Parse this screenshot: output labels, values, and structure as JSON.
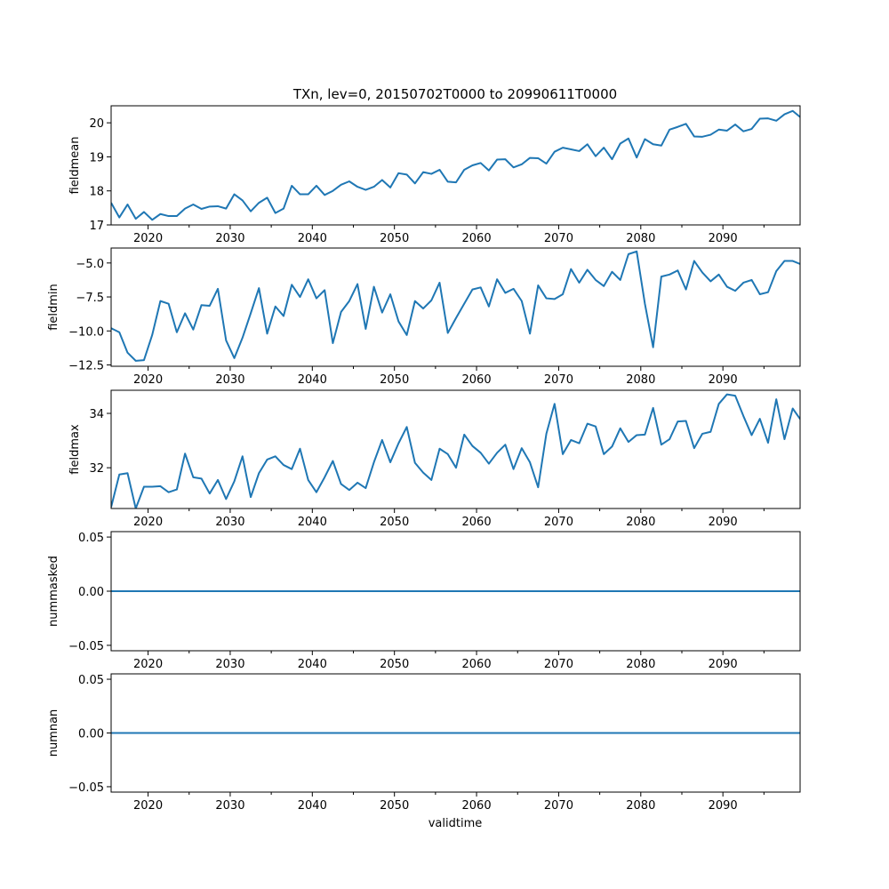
{
  "chart_data": {
    "type": "line",
    "title": "TXn, lev=0, 20150702T0000 to 20990611T0000",
    "xlabel": "validtime",
    "xlim": [
      2015.5,
      2099.4
    ],
    "x_ticks": [
      2020,
      2030,
      2040,
      2050,
      2060,
      2070,
      2080,
      2090
    ],
    "x_tick_labels": [
      "2020",
      "2030",
      "2040",
      "2050",
      "2060",
      "2070",
      "2080",
      "2090"
    ],
    "x_minor_ticks": [
      2025,
      2035,
      2045,
      2055,
      2065,
      2075,
      2085,
      2095
    ],
    "x_start": 2015.5,
    "x_step": 1,
    "panels": [
      {
        "name": "fieldmean",
        "ylabel": "fieldmean",
        "ylim": [
          17.0,
          20.5
        ],
        "y_ticks": [
          17,
          18,
          19,
          20
        ],
        "y_tick_labels": [
          "17",
          "18",
          "19",
          "20"
        ],
        "values": [
          17.65,
          17.22,
          17.6,
          17.18,
          17.38,
          17.15,
          17.32,
          17.26,
          17.26,
          17.48,
          17.6,
          17.47,
          17.54,
          17.55,
          17.48,
          17.9,
          17.72,
          17.4,
          17.65,
          17.8,
          17.35,
          17.48,
          18.15,
          17.9,
          17.9,
          18.15,
          17.88,
          18.0,
          18.18,
          18.28,
          18.12,
          18.03,
          18.12,
          18.32,
          18.1,
          18.52,
          18.48,
          18.22,
          18.55,
          18.5,
          18.62,
          18.27,
          18.25,
          18.62,
          18.75,
          18.82,
          18.6,
          18.92,
          18.93,
          18.69,
          18.78,
          18.97,
          18.96,
          18.8,
          19.15,
          19.27,
          19.22,
          19.17,
          19.37,
          19.02,
          19.27,
          18.93,
          19.39,
          19.54,
          18.98,
          19.52,
          19.37,
          19.33,
          19.8,
          19.88,
          19.97,
          19.6,
          19.59,
          19.65,
          19.8,
          19.77,
          19.95,
          19.75,
          19.82,
          20.12,
          20.13,
          20.06,
          20.25,
          20.35,
          20.15
        ]
      },
      {
        "name": "fieldmin",
        "ylabel": "fieldmin",
        "ylim": [
          -12.6,
          -3.9
        ],
        "y_ticks": [
          -12.5,
          -10.0,
          -7.5,
          -5.0
        ],
        "y_tick_labels": [
          "−12.5",
          "−10.0",
          "−7.5",
          "−5.0"
        ],
        "values": [
          -9.8,
          -10.1,
          -11.6,
          -12.2,
          -12.15,
          -10.3,
          -7.8,
          -8.0,
          -10.1,
          -8.7,
          -9.9,
          -8.1,
          -8.15,
          -6.9,
          -10.7,
          -12.0,
          -10.5,
          -8.7,
          -6.85,
          -10.2,
          -8.2,
          -8.9,
          -6.6,
          -7.5,
          -6.2,
          -7.6,
          -7.0,
          -10.9,
          -8.6,
          -7.8,
          -6.55,
          -9.85,
          -6.75,
          -8.65,
          -7.3,
          -9.3,
          -10.3,
          -7.8,
          -8.35,
          -7.75,
          -6.45,
          -10.15,
          -9.05,
          -8.0,
          -6.95,
          -6.8,
          -8.2,
          -6.2,
          -7.2,
          -6.9,
          -7.8,
          -10.2,
          -6.65,
          -7.6,
          -7.65,
          -7.3,
          -5.45,
          -6.45,
          -5.5,
          -6.25,
          -6.7,
          -5.65,
          -6.25,
          -4.35,
          -4.15,
          -8.0,
          -11.2,
          -6.0,
          -5.85,
          -5.55,
          -6.95,
          -4.85,
          -5.7,
          -6.35,
          -5.85,
          -6.75,
          -7.05,
          -6.45,
          -6.25,
          -7.3,
          -7.15,
          -5.6,
          -4.85,
          -4.85,
          -5.1
        ]
      },
      {
        "name": "fieldmax",
        "ylabel": "fieldmax",
        "ylim": [
          30.5,
          34.85
        ],
        "y_ticks": [
          32,
          34
        ],
        "y_tick_labels": [
          "32",
          "34"
        ],
        "values": [
          30.55,
          31.75,
          31.8,
          30.5,
          31.3,
          31.3,
          31.32,
          31.1,
          31.2,
          32.52,
          31.65,
          31.6,
          31.05,
          31.55,
          30.85,
          31.5,
          32.42,
          30.92,
          31.8,
          32.3,
          32.42,
          32.1,
          31.95,
          32.7,
          31.55,
          31.1,
          31.65,
          32.25,
          31.4,
          31.18,
          31.45,
          31.25,
          32.2,
          33.02,
          32.2,
          32.9,
          33.5,
          32.18,
          31.82,
          31.55,
          32.7,
          32.5,
          32.0,
          33.22,
          32.8,
          32.55,
          32.15,
          32.55,
          32.85,
          31.95,
          32.72,
          32.2,
          31.28,
          33.25,
          34.35,
          32.5,
          33.02,
          32.9,
          33.62,
          33.52,
          32.5,
          32.78,
          33.45,
          32.95,
          33.2,
          33.22,
          34.2,
          32.85,
          33.05,
          33.7,
          33.72,
          32.72,
          33.25,
          33.32,
          34.35,
          34.7,
          34.65,
          33.9,
          33.2,
          33.8,
          32.92,
          34.52,
          33.05,
          34.18,
          33.75
        ]
      },
      {
        "name": "nummasked",
        "ylabel": "nummasked",
        "ylim": [
          -0.055,
          0.055
        ],
        "y_ticks": [
          -0.05,
          0.0,
          0.05
        ],
        "y_tick_labels": [
          "−0.05",
          "0.00",
          "0.05"
        ],
        "constant": 0
      },
      {
        "name": "numnan",
        "ylabel": "numnan",
        "ylim": [
          -0.055,
          0.055
        ],
        "y_ticks": [
          -0.05,
          0.0,
          0.05
        ],
        "y_tick_labels": [
          "−0.05",
          "0.00",
          "0.05"
        ],
        "constant": 0
      }
    ]
  }
}
